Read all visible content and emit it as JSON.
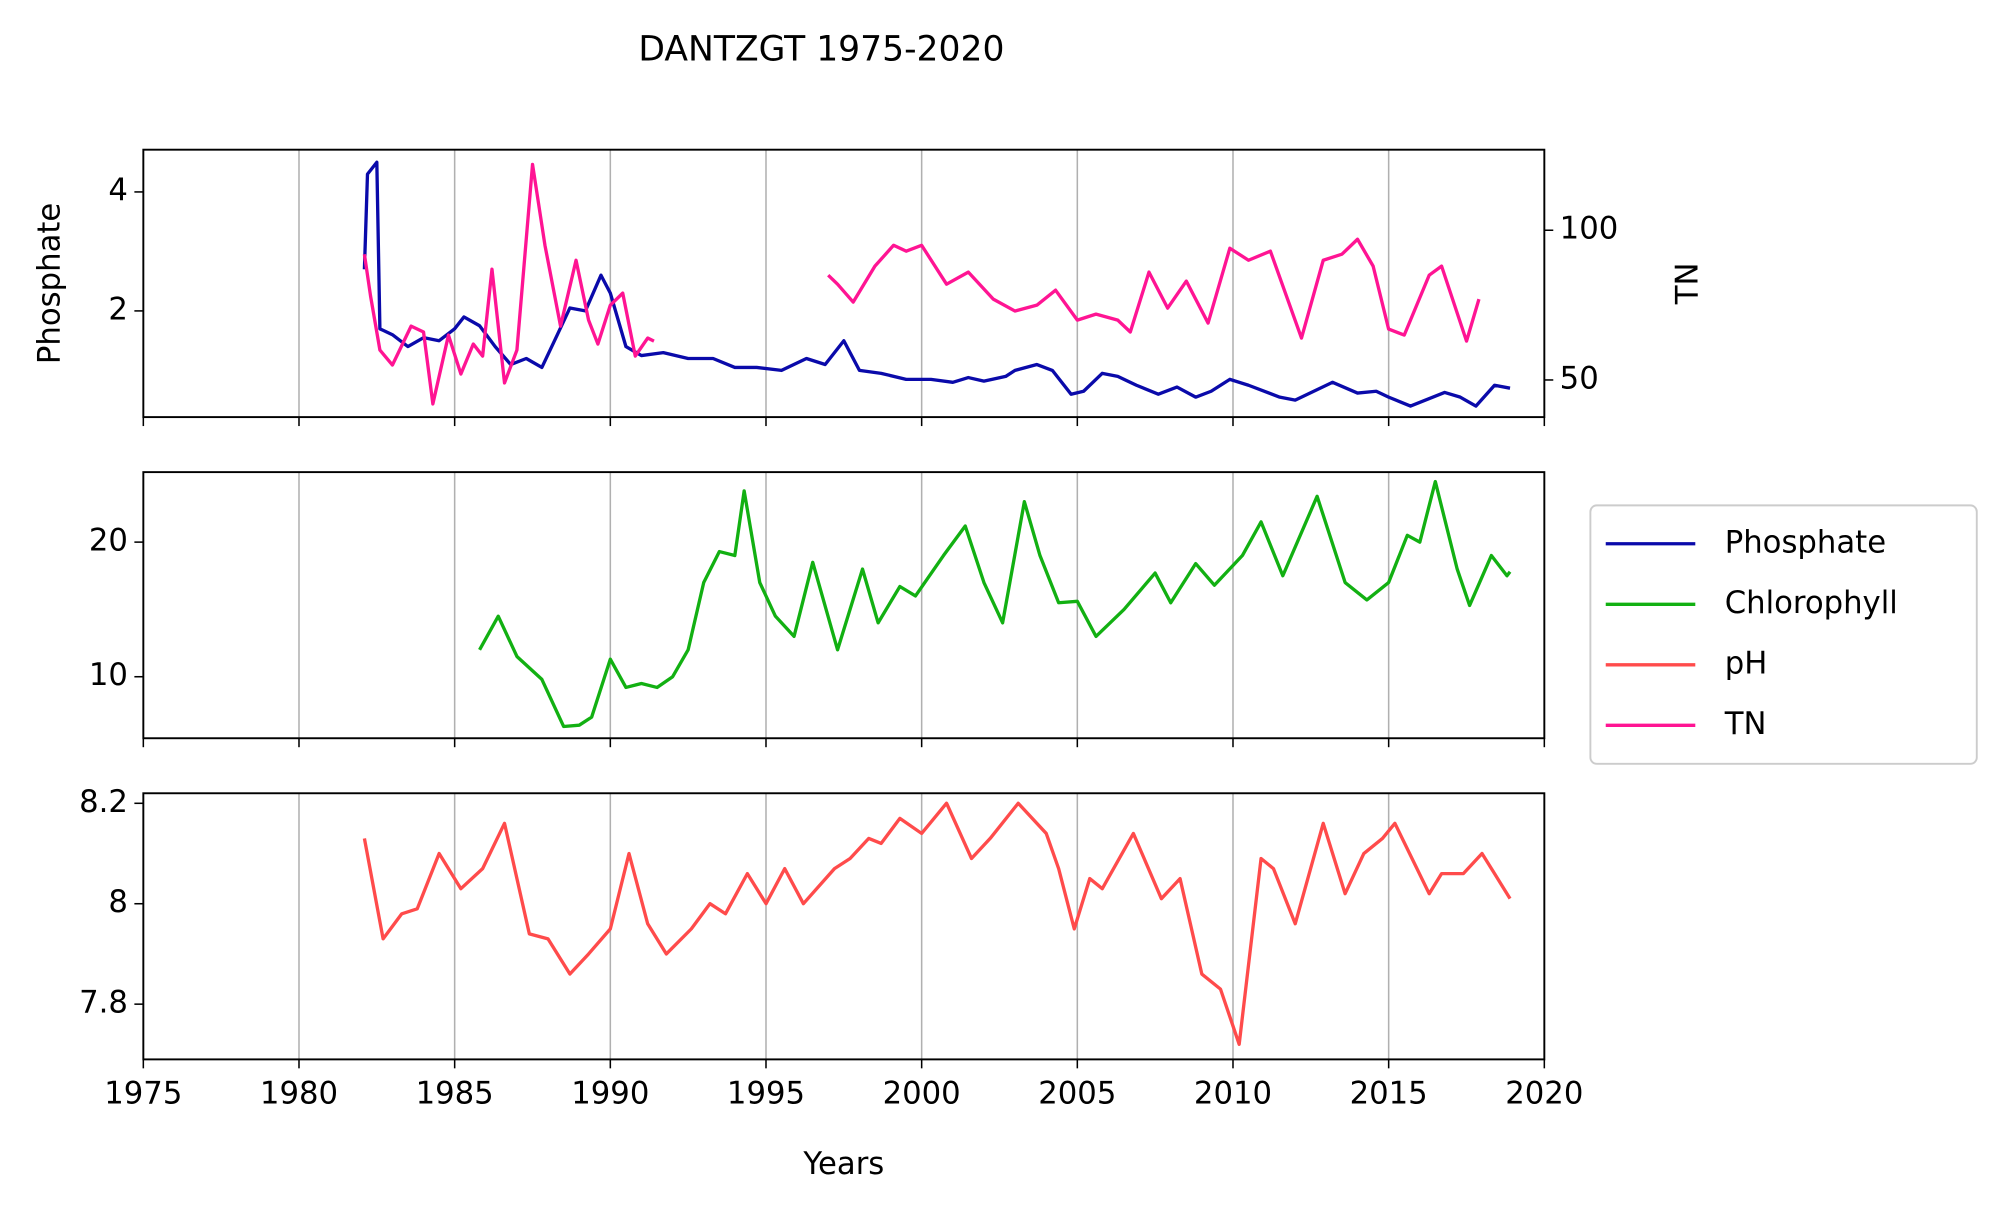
{
  "chart_data": [
    {
      "type": "line",
      "title": "DANTZGT 1975-2020",
      "ylabel": "Phosphate",
      "y2label": "TN",
      "xlim": [
        1975,
        2020
      ],
      "xticks": [
        1975,
        1980,
        1985,
        1990,
        1995,
        2000,
        2005,
        2010,
        2015,
        2020
      ],
      "grid": true,
      "ylim": [
        0.215,
        4.71
      ],
      "yticks": [
        2,
        4
      ],
      "y2lim": [
        37.6,
        126.9
      ],
      "y2ticks": [
        50,
        100
      ],
      "series": [
        {
          "name": "Phosphate",
          "color": "#0a0aaa",
          "x": [
            1982.1,
            1982.2,
            1982.5,
            1982.6,
            1983,
            1983.5,
            1984,
            1984.5,
            1985,
            1985.3,
            1985.8,
            1986.3,
            1986.8,
            1987.3,
            1987.8,
            1988.3,
            1988.7,
            1989.2,
            1989.7,
            1990,
            1990.5,
            1991,
            1991.7,
            1992.5,
            1993.3,
            1994,
            1994.7,
            1995.5,
            1996.3,
            1996.9,
            1997.5,
            1998,
            1998.7,
            1999.5,
            2000.3,
            2001,
            2001.5,
            2002,
            2002.7,
            2003,
            2003.7,
            2004.2,
            2004.8,
            2005.2,
            2005.8,
            2006.3,
            2006.9,
            2007.6,
            2008.2,
            2008.8,
            2009.3,
            2009.9,
            2010.5,
            2011.5,
            2012,
            2013.2,
            2014,
            2014.6,
            2015,
            2015.7,
            2016.8,
            2017.3,
            2017.8,
            2018.4,
            2018.9
          ],
          "values": [
            2.7,
            4.3,
            4.5,
            1.7,
            1.6,
            1.4,
            1.55,
            1.5,
            1.7,
            1.9,
            1.75,
            1.4,
            1.1,
            1.2,
            1.05,
            1.6,
            2.05,
            2.0,
            2.6,
            2.3,
            1.4,
            1.25,
            1.3,
            1.2,
            1.2,
            1.05,
            1.05,
            1.0,
            1.2,
            1.1,
            1.5,
            1.0,
            0.95,
            0.85,
            0.85,
            0.8,
            0.88,
            0.82,
            0.9,
            1.0,
            1.1,
            1.0,
            0.6,
            0.65,
            0.95,
            0.9,
            0.75,
            0.6,
            0.72,
            0.55,
            0.65,
            0.85,
            0.75,
            0.55,
            0.5,
            0.8,
            0.62,
            0.65,
            0.55,
            0.4,
            0.63,
            0.55,
            0.4,
            0.75,
            0.7
          ]
        },
        {
          "name": "TN",
          "color": "#ff1493",
          "axis": "y2",
          "x": [
            1982.1,
            1982.3,
            1982.6,
            1983,
            1983.6,
            1984,
            1984.3,
            1984.8,
            1985.2,
            1985.6,
            1985.9,
            1986.2,
            1986.6,
            1987,
            1987.5,
            1987.9,
            1988.4,
            1988.9,
            1989.3,
            1989.6,
            1990,
            1990.4,
            1990.8,
            1991.2,
            1991.4,
            1994,
            1997,
            1997.3,
            1997.8,
            1998.5,
            1999.1,
            1999.5,
            2000,
            2000.8,
            2001.5,
            2002.3,
            2003,
            2003.7,
            2004.3,
            2005,
            2005.6,
            2006.3,
            2006.7,
            2007.3,
            2007.9,
            2008.5,
            2009.2,
            2009.9,
            2010.5,
            2011.2,
            2012.2,
            2012.9,
            2013.5,
            2014,
            2014.5,
            2015,
            2015.5,
            2016.3,
            2016.7,
            2017.5,
            2017.9
          ],
          "values": [
            92,
            78,
            60,
            55,
            68,
            66,
            42,
            65,
            52,
            62,
            58,
            87,
            49,
            60,
            122,
            95,
            68,
            90,
            70,
            62,
            75,
            79,
            58,
            64,
            63,
            null,
            85,
            82,
            76,
            88,
            95,
            93,
            95,
            82,
            86,
            77,
            73,
            75,
            80,
            70,
            72,
            70,
            66,
            86,
            74,
            83,
            69,
            94,
            90,
            93,
            64,
            90,
            92,
            97,
            88,
            67,
            65,
            85,
            88,
            63,
            77
          ]
        }
      ]
    },
    {
      "type": "line",
      "xlim": [
        1975,
        2020
      ],
      "xticks": [
        1975,
        1980,
        1985,
        1990,
        1995,
        2000,
        2005,
        2010,
        2015,
        2020
      ],
      "grid": true,
      "ylim": [
        5.43,
        25.2
      ],
      "yticks": [
        10,
        20
      ],
      "legend": "outside right",
      "series": [
        {
          "name": "Chlorophyll",
          "color": "#12b012",
          "x": [
            1985.8,
            1986.4,
            1987,
            1987.8,
            1988.5,
            1989,
            1989.4,
            1990,
            1990.5,
            1991,
            1991.5,
            1992,
            1992.5,
            1993,
            1993.5,
            1994,
            1994.3,
            1994.8,
            1995.3,
            1995.9,
            1996.5,
            1997.3,
            1998.1,
            1998.6,
            1999.3,
            1999.8,
            2000.7,
            2001.4,
            2002,
            2002.6,
            2003.3,
            2003.8,
            2004.4,
            2005,
            2005.6,
            2006.5,
            2007.5,
            2008,
            2008.8,
            2009.4,
            2010.3,
            2010.9,
            2011.6,
            2012.7,
            2013.6,
            2014.3,
            2015,
            2015.6,
            2016,
            2016.5,
            2017.2,
            2017.6,
            2018.3,
            2018.8,
            2018.9
          ],
          "values": [
            12,
            14.5,
            11.5,
            9.8,
            6.3,
            6.4,
            7,
            11.3,
            9.2,
            9.5,
            9.2,
            10,
            12,
            17,
            19.3,
            19,
            23.8,
            17,
            14.5,
            13,
            18.5,
            12,
            18,
            14,
            16.7,
            16,
            19,
            21.2,
            17,
            14,
            23,
            19,
            15.5,
            15.6,
            13,
            15,
            17.7,
            15.5,
            18.4,
            16.8,
            19,
            21.5,
            17.5,
            23.4,
            17,
            15.7,
            17,
            20.5,
            20,
            24.5,
            18,
            15.3,
            19,
            17.5,
            17.8
          ]
        }
      ]
    },
    {
      "type": "line",
      "xlabel": "Years",
      "xlim": [
        1975,
        2020
      ],
      "xticks": [
        1975,
        1980,
        1985,
        1990,
        1995,
        2000,
        2005,
        2010,
        2015,
        2020
      ],
      "grid": true,
      "ylim": [
        7.69,
        8.22
      ],
      "yticks": [
        7.8,
        8.0,
        8.2
      ],
      "series": [
        {
          "name": "pH",
          "color": "#ff4b4b",
          "x": [
            1982.1,
            1982.7,
            1983.3,
            1983.8,
            1984.5,
            1985.2,
            1985.9,
            1986.6,
            1987.4,
            1988,
            1988.7,
            1989.3,
            1990,
            1990.6,
            1991.2,
            1991.8,
            1992.6,
            1993.2,
            1993.7,
            1994.4,
            1995,
            1995.6,
            1996.2,
            1997.2,
            1997.7,
            1998.3,
            1998.7,
            1999.3,
            2000,
            2000.8,
            2001.6,
            2002.2,
            2003.1,
            2004,
            2004.4,
            2004.9,
            2005.4,
            2005.8,
            2006.8,
            2007.7,
            2008.3,
            2009,
            2009.6,
            2010.2,
            2010.9,
            2011.3,
            2012,
            2012.9,
            2013.6,
            2014.2,
            2014.8,
            2015.2,
            2016.3,
            2016.7,
            2017.4,
            2018,
            2018.4,
            2018.9
          ],
          "values": [
            8.13,
            7.93,
            7.98,
            7.99,
            8.1,
            8.03,
            8.07,
            8.16,
            7.94,
            7.93,
            7.86,
            7.9,
            7.95,
            8.1,
            7.96,
            7.9,
            7.95,
            8.0,
            7.98,
            8.06,
            8.0,
            8.07,
            8.0,
            8.07,
            8.09,
            8.13,
            8.12,
            8.17,
            8.14,
            8.2,
            8.09,
            8.13,
            8.2,
            8.14,
            8.07,
            7.95,
            8.05,
            8.03,
            8.14,
            8.01,
            8.05,
            7.86,
            7.83,
            7.72,
            8.09,
            8.07,
            7.96,
            8.16,
            8.02,
            8.1,
            8.13,
            8.16,
            8.02,
            8.06,
            8.06,
            8.1,
            8.06,
            8.01
          ]
        }
      ]
    }
  ]
}
